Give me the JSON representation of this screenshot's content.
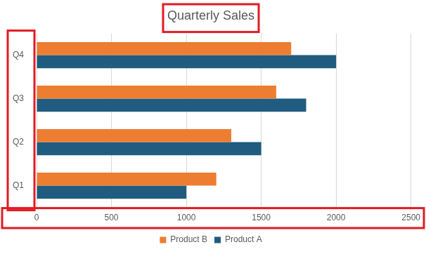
{
  "chart_data": {
    "type": "bar",
    "title": "Quarterly Sales",
    "orientation": "horizontal",
    "categories": [
      "Q1",
      "Q2",
      "Q3",
      "Q4"
    ],
    "series": [
      {
        "name": "Product B",
        "color": "#ed7d31",
        "values": [
          1200,
          1300,
          1600,
          1700
        ]
      },
      {
        "name": "Product A",
        "color": "#1f5c7f",
        "values": [
          1000,
          1500,
          1800,
          2000
        ]
      }
    ],
    "xlim": [
      0,
      2500
    ],
    "xticks": [
      0,
      500,
      1000,
      1500,
      2000,
      2500
    ],
    "grid": true,
    "legend": "bottom"
  }
}
